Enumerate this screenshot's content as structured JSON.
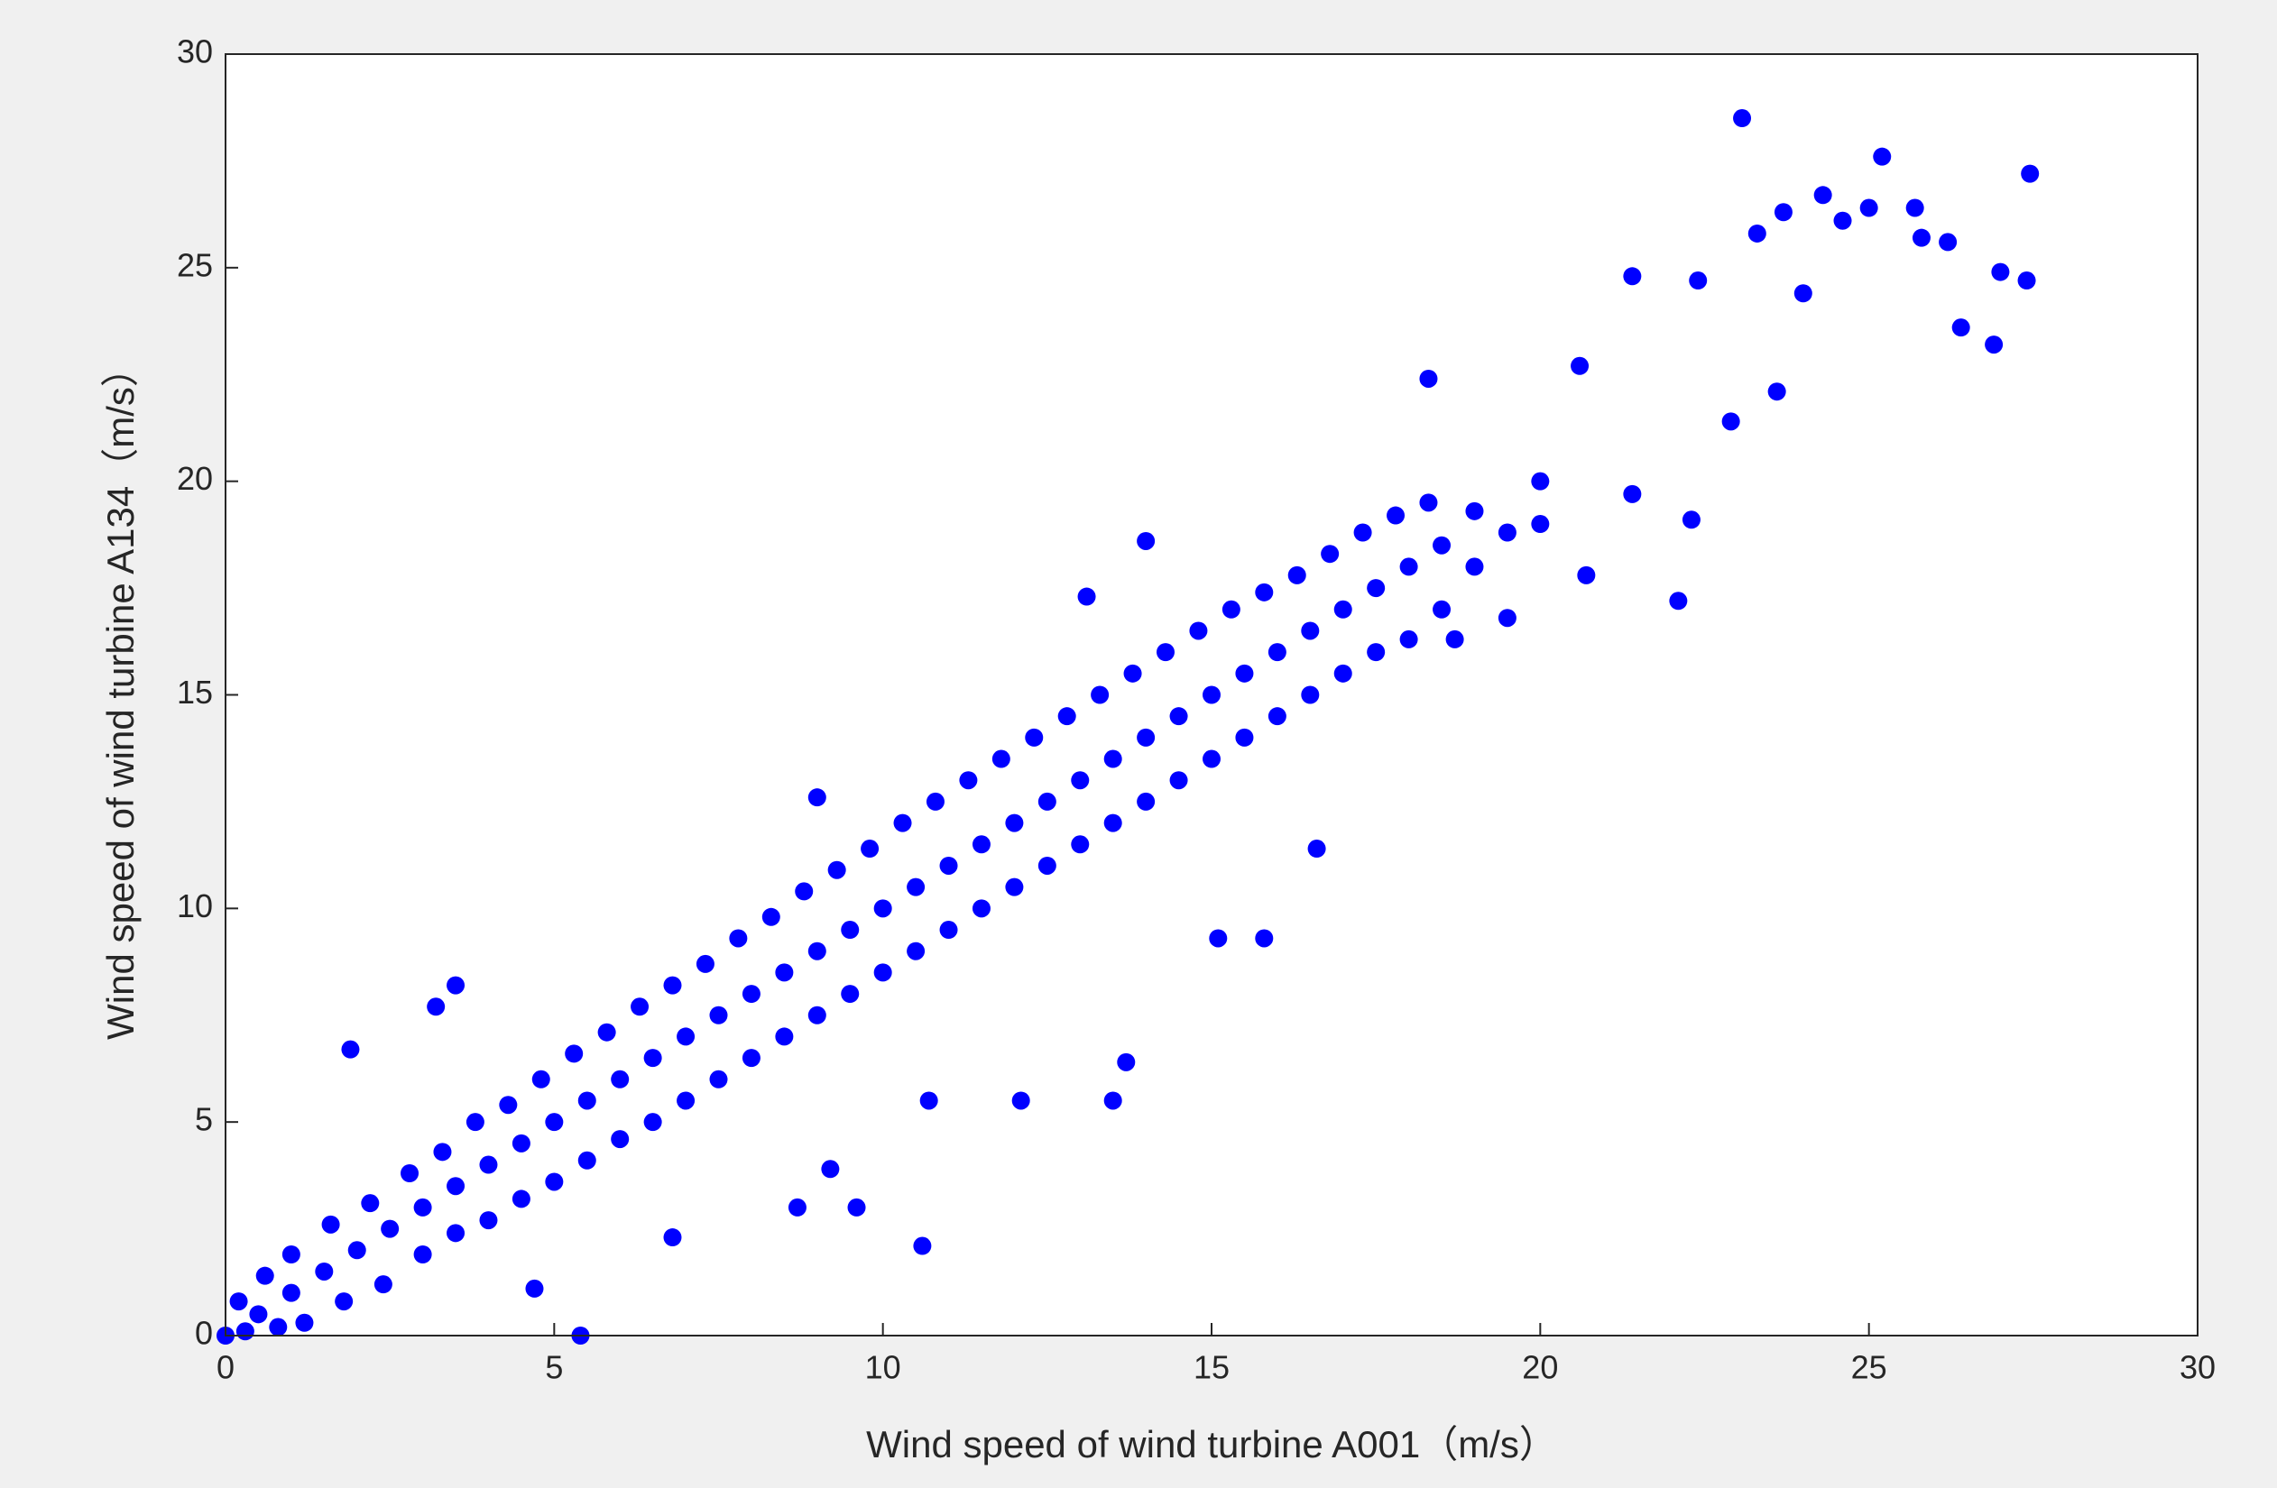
{
  "chart_data": {
    "type": "scatter",
    "x_label": "Wind speed of wind turbine A001（m/s）",
    "y_label": "Wind speed of wind turbine A134（m/s）",
    "xlim": [
      0,
      30
    ],
    "ylim": [
      0,
      30
    ],
    "xticks": [
      0,
      5,
      10,
      15,
      20,
      25,
      30
    ],
    "yticks": [
      0,
      5,
      10,
      15,
      20,
      25,
      30
    ],
    "color": "#0000ff",
    "series": [
      {
        "color": "#0000ff",
        "x": [
          23.07,
          27.45,
          25.2,
          27.4,
          26.9,
          27.0,
          26.4,
          26.2,
          25.8,
          25.7,
          25.0,
          24.6,
          24.3,
          23.7,
          23.3,
          23.6,
          22.9,
          22.3,
          22.1,
          21.4,
          20.6,
          20.0,
          18.3,
          19.5,
          16.6,
          15.8,
          15.1,
          12.1,
          13.5,
          13.7,
          10.7,
          10.6,
          5.4,
          1.9,
          3.5,
          3.2,
          9.2,
          9.6,
          8.7,
          6.8,
          4.7,
          14.0,
          13.1,
          9.0,
          22.4,
          24.0,
          21.4,
          20.7,
          18.7,
          0,
          0.2,
          0.3,
          0.5,
          0.6,
          0.8,
          1,
          1,
          1.2,
          1.5,
          1.6,
          1.8,
          2,
          2.2,
          2.4,
          2.5,
          2.8,
          3,
          3,
          3.3,
          3.5,
          3.5,
          3.8,
          4,
          4,
          4.3,
          4.5,
          4.5,
          4.8,
          5,
          5,
          5.3,
          5.5,
          5.5,
          5.8,
          6,
          6,
          6.3,
          6.5,
          6.5,
          6.8,
          7,
          7,
          7.3,
          7.5,
          7.5,
          7.8,
          8,
          8,
          8.3,
          8.5,
          8.5,
          8.8,
          9,
          9,
          9.3,
          9.5,
          9.5,
          9.8,
          10,
          10,
          10.3,
          10.5,
          10.5,
          10.8,
          11,
          11,
          11.3,
          11.5,
          11.5,
          11.8,
          12,
          12,
          12.3,
          12.5,
          12.5,
          12.8,
          13,
          13,
          13.3,
          13.5,
          13.5,
          13.8,
          14,
          14,
          14.3,
          14.5,
          14.5,
          14.8,
          15,
          15,
          15.3,
          15.5,
          15.5,
          15.8,
          16,
          16,
          16.3,
          16.5,
          16.5,
          16.8,
          17,
          17,
          17.3,
          17.5,
          17.5,
          17.8,
          18,
          18,
          18.3,
          18.5,
          18.5,
          19,
          19,
          19.5,
          20
        ],
        "values": [
          28.5,
          27.2,
          27.6,
          24.7,
          23.2,
          24.9,
          23.6,
          25.6,
          25.7,
          26.4,
          26.4,
          26.1,
          26.7,
          26.3,
          25.8,
          22.1,
          21.4,
          19.1,
          17.2,
          24.8,
          22.7,
          20.0,
          22.4,
          16.8,
          11.4,
          9.3,
          9.3,
          5.5,
          5.5,
          6.4,
          5.5,
          2.1,
          0.0,
          6.7,
          8.2,
          7.7,
          3.9,
          3.0,
          3.0,
          2.3,
          1.1,
          18.6,
          17.3,
          12.6,
          24.7,
          24.4,
          19.7,
          17.8,
          16.3,
          0,
          0.8,
          0.1,
          0.5,
          1.4,
          0.2,
          1,
          1.9,
          0.3,
          1.5,
          2.6,
          0.8,
          2,
          3.1,
          1.2,
          2.5,
          3.8,
          1.9,
          3,
          4.3,
          2.4,
          3.5,
          5.0,
          2.7,
          4,
          5.4,
          3.2,
          4.5,
          6.0,
          3.6,
          5,
          6.6,
          4.1,
          5.5,
          7.1,
          4.6,
          6,
          7.7,
          5.0,
          6.5,
          8.2,
          5.5,
          7,
          8.7,
          6.0,
          7.5,
          9.3,
          6.5,
          8,
          9.8,
          7.0,
          8.5,
          10.4,
          7.5,
          9,
          10.9,
          8.0,
          9.5,
          11.4,
          8.5,
          10,
          12.0,
          9.0,
          10.5,
          12.5,
          9.5,
          11,
          13.0,
          10.0,
          11.5,
          13.5,
          10.5,
          12,
          14.0,
          11.0,
          12.5,
          14.5,
          11.5,
          13,
          15.0,
          12.0,
          13.5,
          15.5,
          12.5,
          14,
          16.0,
          13.0,
          14.5,
          16.5,
          13.5,
          15,
          17.0,
          14.0,
          15.5,
          17.4,
          14.5,
          16,
          17.8,
          15.0,
          16.5,
          18.3,
          15.5,
          17,
          18.8,
          16.0,
          17.5,
          19.2,
          16.3,
          18,
          19.5,
          17.0,
          18.5,
          18.0,
          19.3,
          18.8,
          19.0
        ]
      }
    ]
  }
}
